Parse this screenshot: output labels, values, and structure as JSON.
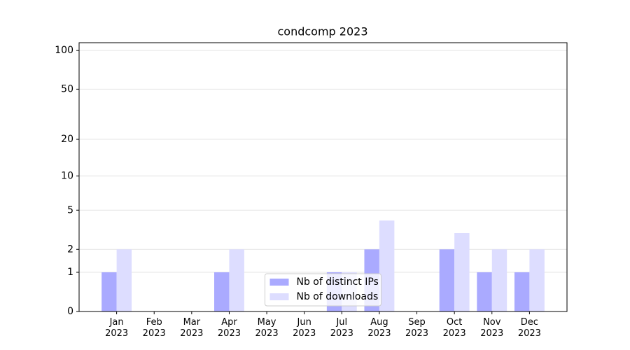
{
  "chart_data": {
    "type": "bar",
    "title": "condcomp 2023",
    "categories": [
      "Jan\n2023",
      "Feb\n2023",
      "Mar\n2023",
      "Apr\n2023",
      "May\n2023",
      "Jun\n2023",
      "Jul\n2023",
      "Aug\n2023",
      "Sep\n2023",
      "Oct\n2023",
      "Nov\n2023",
      "Dec\n2023"
    ],
    "series": [
      {
        "name": "Nb of distinct IPs",
        "color": "#aaaaff",
        "values": [
          1,
          0,
          0,
          1,
          0,
          0,
          1,
          2,
          0,
          2,
          1,
          1
        ]
      },
      {
        "name": "Nb of downloads",
        "color": "#ddddff",
        "values": [
          2,
          0,
          0,
          2,
          0,
          0,
          1,
          4,
          0,
          3,
          2,
          2
        ]
      }
    ],
    "yscale": "log1p",
    "ylim": [
      0,
      115
    ],
    "yticks": [
      0,
      1,
      2,
      5,
      10,
      20,
      50,
      100
    ],
    "grid": true,
    "legend": "lower center"
  }
}
